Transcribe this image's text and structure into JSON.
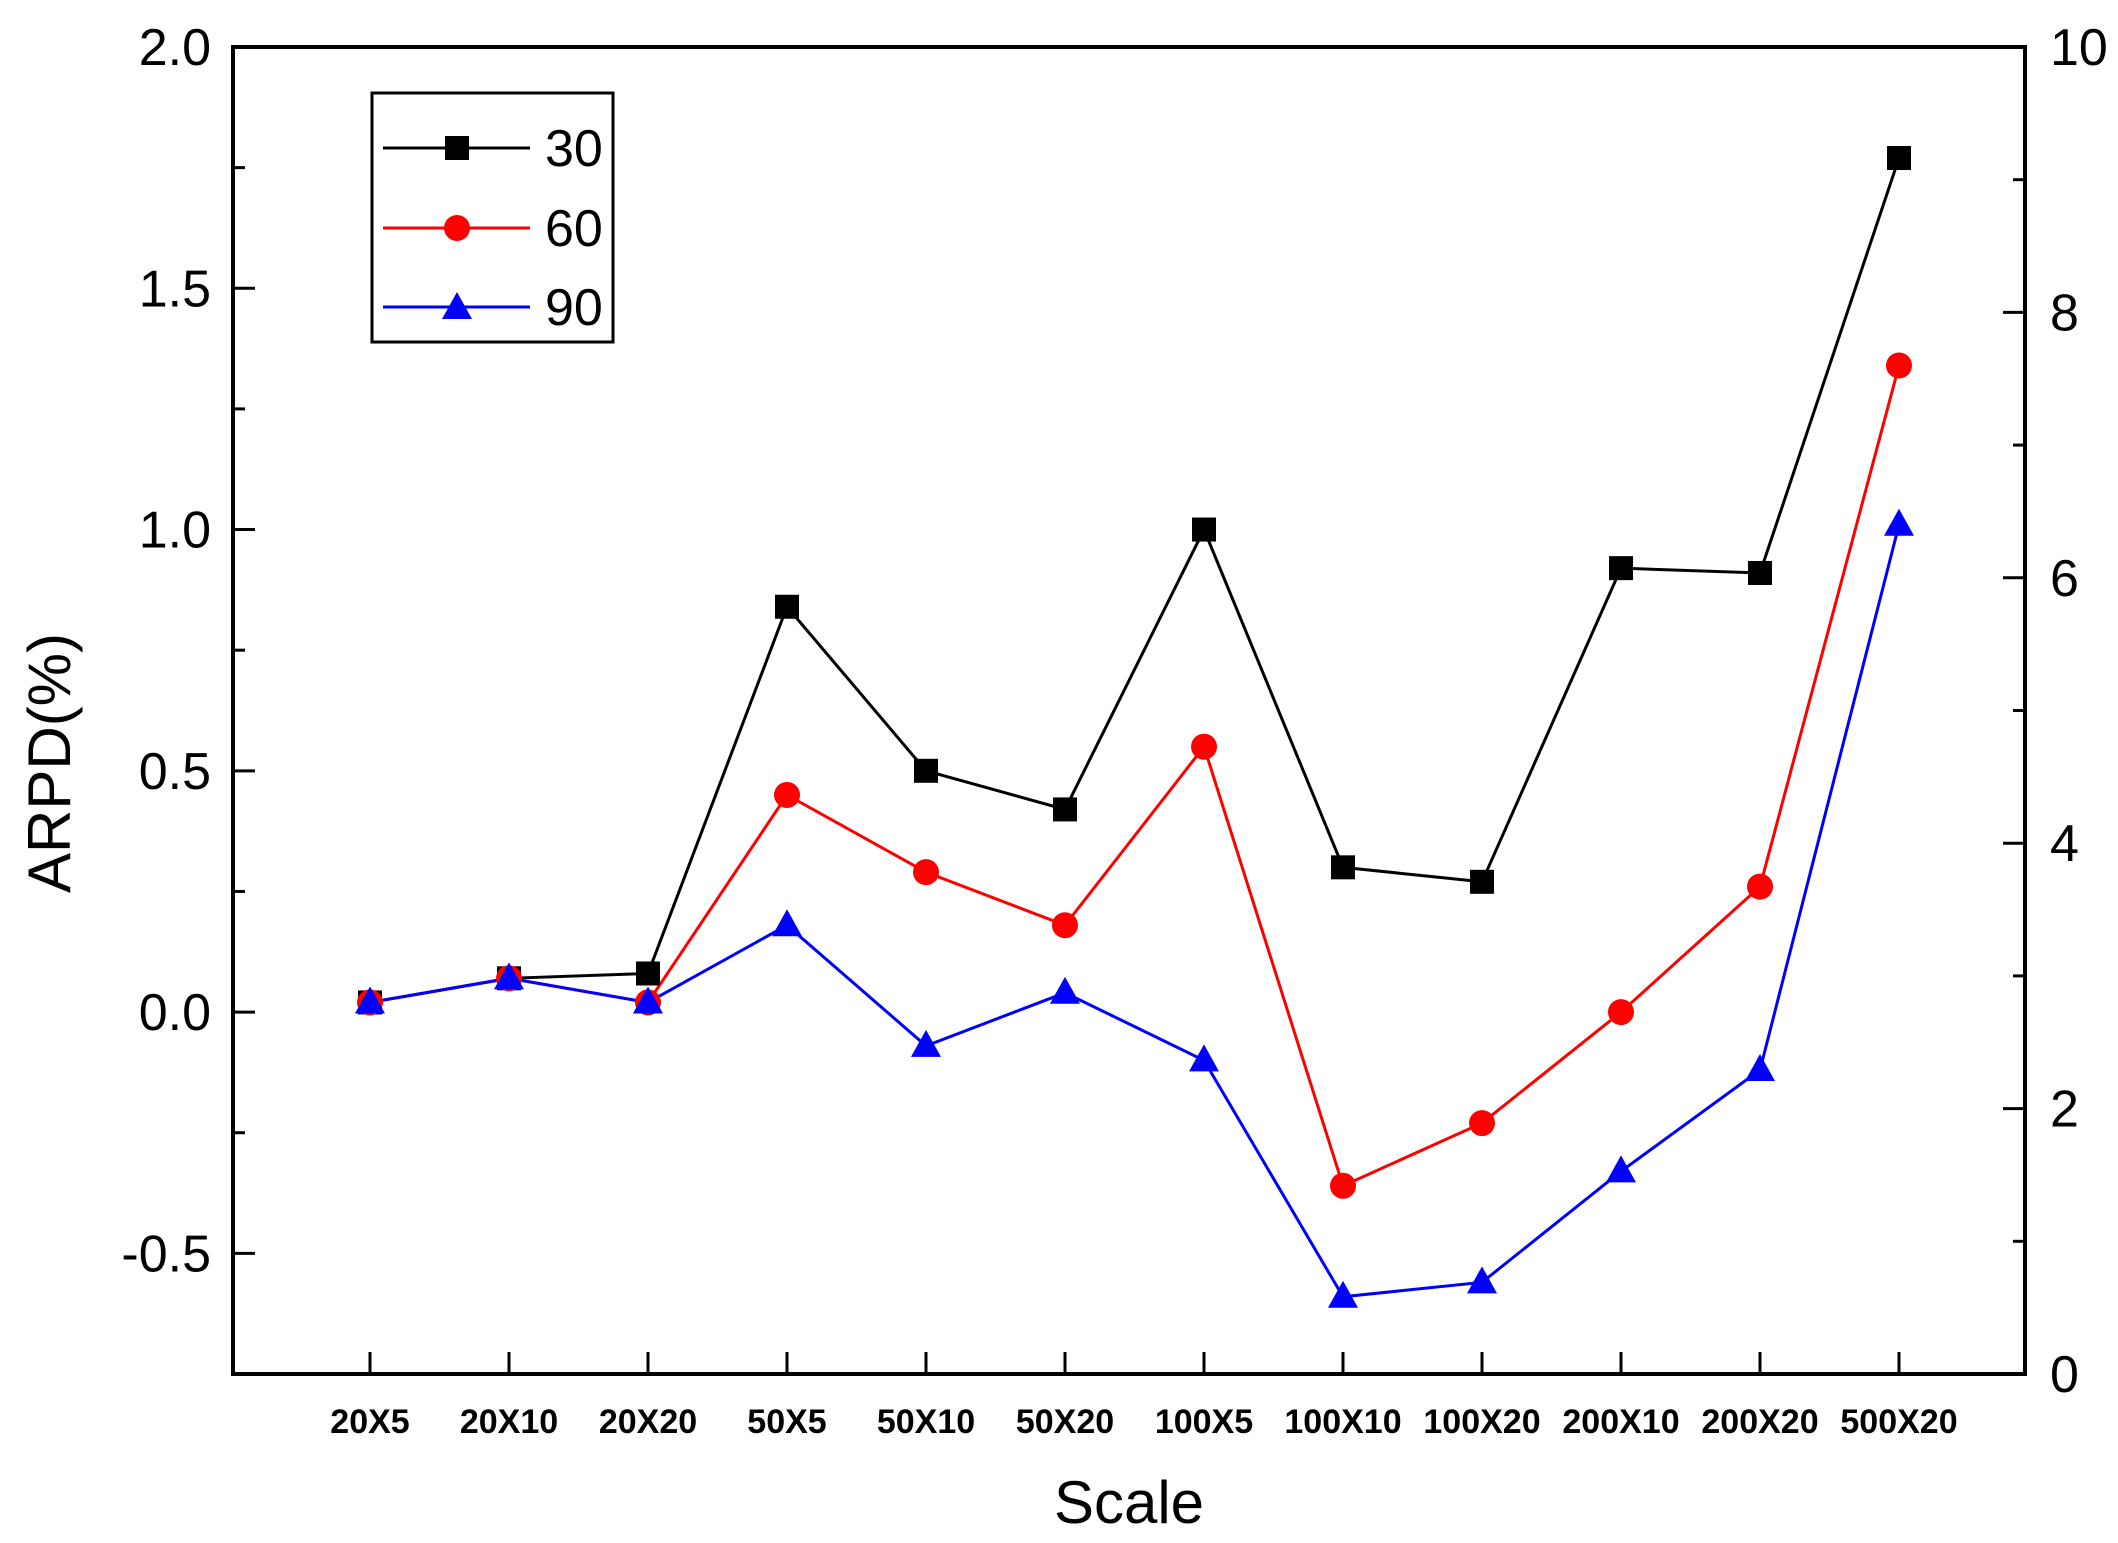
{
  "chart_data": {
    "type": "line",
    "title": "",
    "xlabel": "Scale",
    "ylabel": "ARPD(%)",
    "categories": [
      "20X5",
      "20X10",
      "20X20",
      "50X5",
      "50X10",
      "50X20",
      "100X5",
      "100X10",
      "100X20",
      "200X10",
      "200X20",
      "500X20"
    ],
    "ylim": [
      -0.75,
      2.0
    ],
    "yticks": [
      "-0.5",
      "0.0",
      "0.5",
      "1.0",
      "1.5",
      "2.0"
    ],
    "yticks_values": [
      -0.5,
      0.0,
      0.5,
      1.0,
      1.5,
      2.0
    ],
    "y2lim": [
      0,
      10
    ],
    "y2ticks": [
      "0",
      "2",
      "4",
      "6",
      "8",
      "10"
    ],
    "y2ticks_values": [
      0,
      2,
      4,
      6,
      8,
      10
    ],
    "grid": false,
    "legend_position": "top-left",
    "series": [
      {
        "name": "30",
        "color": "#000000",
        "marker": "square",
        "values": [
          0.02,
          0.07,
          0.08,
          0.84,
          0.5,
          0.42,
          1.0,
          0.3,
          0.27,
          0.92,
          0.91,
          1.77
        ]
      },
      {
        "name": "60",
        "color": "#ff0000",
        "marker": "circle",
        "values": [
          0.02,
          0.07,
          0.02,
          0.45,
          0.29,
          0.18,
          0.55,
          -0.36,
          -0.23,
          0.0,
          0.26,
          1.34
        ]
      },
      {
        "name": "90",
        "color": "#0000ff",
        "marker": "triangle",
        "values": [
          0.02,
          0.07,
          0.02,
          0.18,
          -0.07,
          0.04,
          -0.1,
          -0.59,
          -0.56,
          -0.33,
          -0.12,
          1.01
        ]
      }
    ]
  }
}
